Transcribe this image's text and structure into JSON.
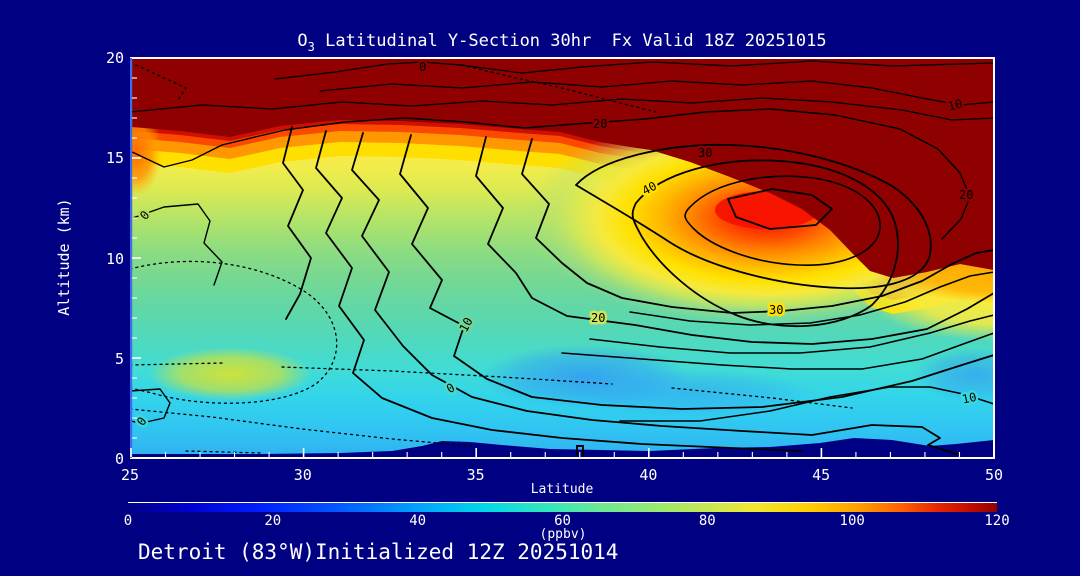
{
  "title": {
    "prefix": "O",
    "sub": "3",
    "rest": " Latitudinal Y-Section 30hr  Fx Valid 18Z 20251015"
  },
  "y_axis": {
    "label": "Altitude (km)",
    "ticks": [
      "20",
      "15",
      "10",
      "5",
      "0"
    ]
  },
  "x_axis": {
    "label": "Latitude",
    "ticks": [
      "25",
      "30",
      "35",
      "40",
      "45",
      "50"
    ]
  },
  "colorbar": {
    "ticks": [
      "0",
      "20",
      "40",
      "60",
      "80",
      "100",
      "120"
    ],
    "unit": "(ppbv)"
  },
  "caption": "Detroit (83°W)Initialized 12Z 20251014",
  "contour_labels": [
    {
      "text": "0"
    },
    {
      "text": "10"
    },
    {
      "text": "20"
    },
    {
      "text": "20"
    },
    {
      "text": "30"
    },
    {
      "text": "40"
    },
    {
      "text": "30"
    },
    {
      "text": "20"
    },
    {
      "text": "10"
    },
    {
      "text": "0"
    },
    {
      "text": "10"
    },
    {
      "text": "0"
    },
    {
      "text": "0"
    }
  ],
  "colors": {
    "background": "#000082",
    "axis_box": "#ffffff",
    "left_axis_line": "#3d6cf0",
    "contour_line": "#000000",
    "fill_max": "#8f0000",
    "text": "#ffffff"
  },
  "marker": {
    "shape": "open-box-station-marker",
    "color": "#000000",
    "latitude": 38,
    "altitude_km": 0.3
  },
  "chart_data": {
    "type": "heatmap",
    "title": "O3 Latitudinal Y-Section 30hr Fx Valid 18Z 20251015",
    "xlabel": "Latitude",
    "ylabel": "Altitude (km)",
    "xlim": [
      25,
      50
    ],
    "ylim": [
      0,
      20
    ],
    "x_major_ticks": [
      25,
      30,
      35,
      40,
      45,
      50
    ],
    "y_major_ticks": [
      0,
      5,
      10,
      15,
      20
    ],
    "fill_variable": "O3 mixing ratio (ppbv)",
    "fill_range": [
      0,
      120
    ],
    "colorbar_ticks": [
      0,
      20,
      40,
      60,
      80,
      100,
      120
    ],
    "colorbar_unit": "ppbv",
    "overlaid_contour_levels_labeled": [
      0,
      10,
      20,
      30,
      40
    ],
    "negative_contour_style": "dotted",
    "features": [
      "O3 > 120 ppbv (dark red fill) above ~16.5 km across all latitudes, lowering to ~9 km between latitude 43 and 50",
      "Closed contour maximum (label 40, bright red core) centered near latitude 43.5 at ~12.5 km altitude",
      "Yellow band (~60-80 ppbv) between 13 and 16 km on the left half of the section",
      "Green fill (~40-60 ppbv) through the mid-troposphere 5-12 km",
      "Cyan/blue fill (~20-40 ppbv) below ~4 km; deepest blue near the surface between latitude 38 and 48",
      "Dotted (negative) overlay contours in the lower troposphere, latitudes 25-35",
      "Dark navy terrain strip along the bottom with a station marker near latitude 38"
    ]
  }
}
